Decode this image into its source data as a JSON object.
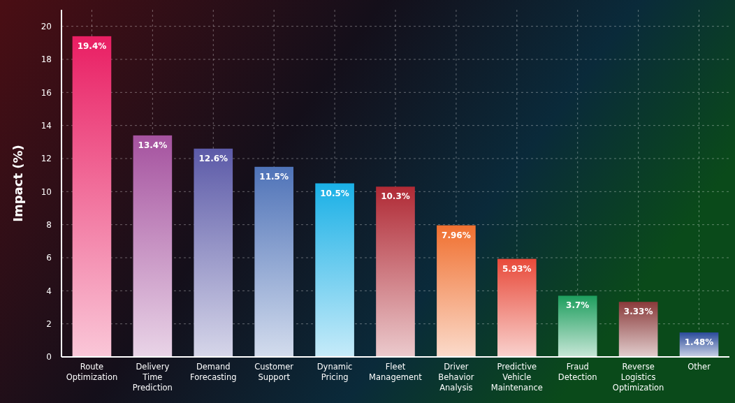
{
  "chart_data": {
    "type": "bar",
    "ylabel": "Impact (%)",
    "categories": [
      "Route Optimization",
      "Delivery Time Prediction",
      "Demand Forecasting",
      "Customer Support",
      "Dynamic Pricing",
      "Fleet Management",
      "Driver Behavior Analysis",
      "Predictive Vehicle Maintenance",
      "Fraud Detection",
      "Reverse Logistics Optimization",
      "Other"
    ],
    "values": [
      19.4,
      13.4,
      12.6,
      11.5,
      10.5,
      10.3,
      7.96,
      5.93,
      3.7,
      3.33,
      1.48
    ],
    "value_labels": [
      "19.4%",
      "13.4%",
      "12.6%",
      "11.5%",
      "10.5%",
      "10.3%",
      "7.96%",
      "5.93%",
      "3.7%",
      "3.33%",
      "1.48%"
    ],
    "colors": [
      "#e91e63",
      "#a5529f",
      "#5c5aa8",
      "#4f73b8",
      "#1ab0e6",
      "#b02a35",
      "#f07030",
      "#e84a3a",
      "#1e9e5e",
      "#8a3a3a",
      "#2a4a9a"
    ],
    "ylim": [
      0,
      21
    ],
    "yticks": [
      0,
      2,
      4,
      6,
      8,
      10,
      12,
      14,
      16,
      18,
      20
    ],
    "grid": true
  }
}
